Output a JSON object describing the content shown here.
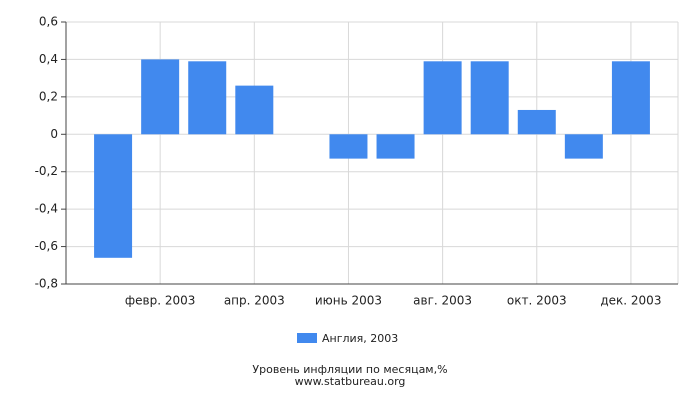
{
  "chart_data": {
    "type": "bar",
    "categories": [
      null,
      "февр. 2003",
      null,
      "апр. 2003",
      null,
      "июнь 2003",
      null,
      "авг. 2003",
      null,
      "окт. 2003",
      null,
      "дек. 2003"
    ],
    "series": [
      {
        "name": "Англия, 2003",
        "color": "#4189ee",
        "values": [
          -0.66,
          0.4,
          0.39,
          0.26,
          0,
          -0.13,
          -0.13,
          0.39,
          0.39,
          0.13,
          -0.13,
          0.39
        ]
      }
    ],
    "ylim": [
      -0.8,
      0.6
    ],
    "yticks": [
      {
        "value": -0.8,
        "label": "-0,8"
      },
      {
        "value": -0.6,
        "label": "-0,6"
      },
      {
        "value": -0.4,
        "label": "-0,4"
      },
      {
        "value": -0.2,
        "label": "-0,2"
      },
      0,
      {
        "value": 0.2,
        "label": "0,2"
      },
      {
        "value": 0.4,
        "label": "0,4"
      },
      {
        "value": 0.6,
        "label": "0,6"
      }
    ],
    "grid": true,
    "footer": [
      "Уровень инфляции по месяцам,%",
      "www.statbureau.org"
    ]
  }
}
